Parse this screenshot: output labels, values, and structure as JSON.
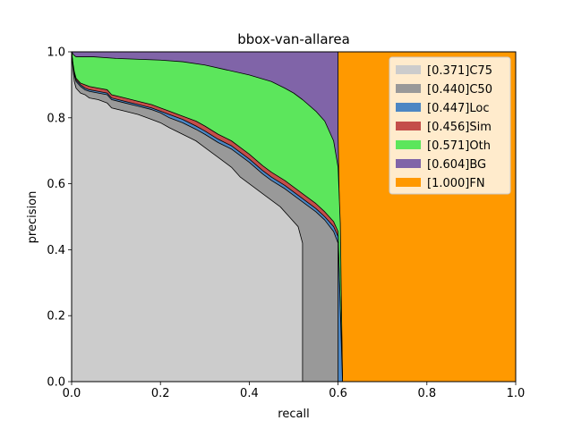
{
  "chart_data": {
    "type": "area",
    "title": "bbox-van-allarea",
    "xlabel": "recall",
    "ylabel": "precision",
    "xlim": [
      0,
      1
    ],
    "ylim": [
      0,
      1
    ],
    "xticks": [
      "0.0",
      "0.2",
      "0.4",
      "0.6",
      "0.8",
      "1.0"
    ],
    "yticks": [
      "0.0",
      "0.2",
      "0.4",
      "0.6",
      "0.8",
      "1.0"
    ],
    "grid": false,
    "legend_position": "top-right",
    "series": [
      {
        "name": "[0.371]C75",
        "color": "#cccccc",
        "points": [
          [
            0.0,
            1.0
          ],
          [
            0.003,
            0.95
          ],
          [
            0.006,
            0.91
          ],
          [
            0.01,
            0.89
          ],
          [
            0.02,
            0.875
          ],
          [
            0.03,
            0.87
          ],
          [
            0.04,
            0.86
          ],
          [
            0.06,
            0.855
          ],
          [
            0.08,
            0.845
          ],
          [
            0.09,
            0.83
          ],
          [
            0.12,
            0.82
          ],
          [
            0.15,
            0.81
          ],
          [
            0.18,
            0.795
          ],
          [
            0.2,
            0.785
          ],
          [
            0.22,
            0.77
          ],
          [
            0.25,
            0.75
          ],
          [
            0.28,
            0.73
          ],
          [
            0.3,
            0.71
          ],
          [
            0.33,
            0.68
          ],
          [
            0.36,
            0.65
          ],
          [
            0.38,
            0.62
          ],
          [
            0.4,
            0.6
          ],
          [
            0.43,
            0.57
          ],
          [
            0.45,
            0.55
          ],
          [
            0.47,
            0.53
          ],
          [
            0.49,
            0.5
          ],
          [
            0.51,
            0.47
          ],
          [
            0.52,
            0.42
          ],
          [
            0.52,
            0.0
          ]
        ]
      },
      {
        "name": "[0.440]C50",
        "color": "#999999",
        "points": [
          [
            0.0,
            1.0
          ],
          [
            0.003,
            0.96
          ],
          [
            0.006,
            0.93
          ],
          [
            0.01,
            0.91
          ],
          [
            0.02,
            0.895
          ],
          [
            0.03,
            0.885
          ],
          [
            0.04,
            0.88
          ],
          [
            0.06,
            0.875
          ],
          [
            0.08,
            0.87
          ],
          [
            0.09,
            0.855
          ],
          [
            0.12,
            0.845
          ],
          [
            0.15,
            0.835
          ],
          [
            0.18,
            0.825
          ],
          [
            0.2,
            0.815
          ],
          [
            0.22,
            0.8
          ],
          [
            0.25,
            0.785
          ],
          [
            0.28,
            0.765
          ],
          [
            0.3,
            0.75
          ],
          [
            0.33,
            0.725
          ],
          [
            0.36,
            0.705
          ],
          [
            0.38,
            0.685
          ],
          [
            0.4,
            0.665
          ],
          [
            0.43,
            0.63
          ],
          [
            0.45,
            0.61
          ],
          [
            0.48,
            0.585
          ],
          [
            0.5,
            0.565
          ],
          [
            0.52,
            0.545
          ],
          [
            0.55,
            0.515
          ],
          [
            0.57,
            0.49
          ],
          [
            0.59,
            0.455
          ],
          [
            0.6,
            0.42
          ],
          [
            0.6,
            0.0
          ]
        ]
      },
      {
        "name": "[0.447]Loc",
        "color": "#4c86c3",
        "points": [
          [
            0.0,
            1.0
          ],
          [
            0.003,
            0.96
          ],
          [
            0.006,
            0.935
          ],
          [
            0.01,
            0.915
          ],
          [
            0.02,
            0.9
          ],
          [
            0.03,
            0.89
          ],
          [
            0.04,
            0.885
          ],
          [
            0.06,
            0.88
          ],
          [
            0.08,
            0.875
          ],
          [
            0.09,
            0.86
          ],
          [
            0.12,
            0.85
          ],
          [
            0.15,
            0.84
          ],
          [
            0.18,
            0.83
          ],
          [
            0.2,
            0.82
          ],
          [
            0.22,
            0.81
          ],
          [
            0.25,
            0.795
          ],
          [
            0.28,
            0.775
          ],
          [
            0.3,
            0.76
          ],
          [
            0.33,
            0.735
          ],
          [
            0.36,
            0.715
          ],
          [
            0.38,
            0.695
          ],
          [
            0.4,
            0.675
          ],
          [
            0.43,
            0.64
          ],
          [
            0.45,
            0.62
          ],
          [
            0.48,
            0.595
          ],
          [
            0.5,
            0.575
          ],
          [
            0.52,
            0.555
          ],
          [
            0.55,
            0.525
          ],
          [
            0.57,
            0.5
          ],
          [
            0.59,
            0.47
          ],
          [
            0.6,
            0.44
          ],
          [
            0.61,
            0.0
          ]
        ]
      },
      {
        "name": "[0.456]Sim",
        "color": "#c44e4a",
        "points": [
          [
            0.0,
            1.0
          ],
          [
            0.003,
            0.965
          ],
          [
            0.006,
            0.94
          ],
          [
            0.01,
            0.92
          ],
          [
            0.02,
            0.905
          ],
          [
            0.03,
            0.9
          ],
          [
            0.04,
            0.895
          ],
          [
            0.06,
            0.89
          ],
          [
            0.08,
            0.885
          ],
          [
            0.09,
            0.87
          ],
          [
            0.12,
            0.86
          ],
          [
            0.15,
            0.85
          ],
          [
            0.18,
            0.84
          ],
          [
            0.2,
            0.83
          ],
          [
            0.22,
            0.82
          ],
          [
            0.25,
            0.805
          ],
          [
            0.28,
            0.79
          ],
          [
            0.3,
            0.775
          ],
          [
            0.33,
            0.75
          ],
          [
            0.36,
            0.73
          ],
          [
            0.38,
            0.71
          ],
          [
            0.4,
            0.69
          ],
          [
            0.43,
            0.655
          ],
          [
            0.45,
            0.635
          ],
          [
            0.48,
            0.61
          ],
          [
            0.5,
            0.59
          ],
          [
            0.52,
            0.57
          ],
          [
            0.55,
            0.54
          ],
          [
            0.57,
            0.515
          ],
          [
            0.59,
            0.485
          ],
          [
            0.6,
            0.455
          ],
          [
            0.61,
            0.0
          ]
        ]
      },
      {
        "name": "[0.571]Oth",
        "color": "#5ce65c",
        "points": [
          [
            0.0,
            1.0
          ],
          [
            0.005,
            0.99
          ],
          [
            0.01,
            0.985
          ],
          [
            0.05,
            0.985
          ],
          [
            0.1,
            0.98
          ],
          [
            0.2,
            0.975
          ],
          [
            0.25,
            0.97
          ],
          [
            0.3,
            0.96
          ],
          [
            0.35,
            0.945
          ],
          [
            0.4,
            0.93
          ],
          [
            0.45,
            0.91
          ],
          [
            0.48,
            0.89
          ],
          [
            0.5,
            0.875
          ],
          [
            0.52,
            0.855
          ],
          [
            0.55,
            0.82
          ],
          [
            0.57,
            0.79
          ],
          [
            0.59,
            0.73
          ],
          [
            0.6,
            0.65
          ],
          [
            0.605,
            0.48
          ],
          [
            0.61,
            0.0
          ]
        ]
      },
      {
        "name": "[0.604]BG",
        "color": "#8064a8",
        "points": [
          [
            0.0,
            1.0
          ],
          [
            0.6,
            1.0
          ],
          [
            0.6,
            0.75
          ],
          [
            0.61,
            0.0
          ]
        ]
      },
      {
        "name": "[1.000]FN",
        "color": "#ff9900",
        "points": [
          [
            0.0,
            1.0
          ],
          [
            1.0,
            1.0
          ],
          [
            1.0,
            0.0
          ]
        ]
      }
    ]
  }
}
